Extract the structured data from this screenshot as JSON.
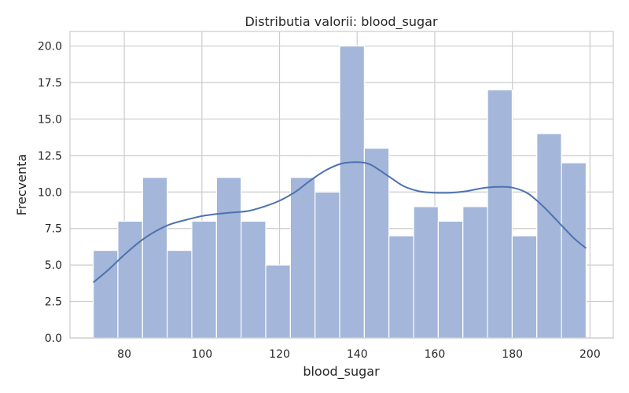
{
  "chart_data": {
    "type": "histogram",
    "title": "Distributia valorii: blood_sugar",
    "xlabel": "blood_sugar",
    "ylabel": "Frecventa",
    "xlim": [
      66,
      206
    ],
    "ylim": [
      0,
      21
    ],
    "xticks": [
      80,
      100,
      120,
      140,
      160,
      180,
      200
    ],
    "yticks": [
      0,
      2.5,
      5,
      7.5,
      10,
      12.5,
      15,
      17.5,
      20
    ],
    "ytick_labels": [
      "0.0",
      "2.5",
      "5.0",
      "7.5",
      "10.0",
      "12.5",
      "15.0",
      "17.5",
      "20.0"
    ],
    "grid": true,
    "bar_color": "#a4b6d9",
    "line_color": "#4c72b0",
    "bins": [
      {
        "x0": 72.0,
        "x1": 78.35,
        "count": 6
      },
      {
        "x0": 78.35,
        "x1": 84.7,
        "count": 8
      },
      {
        "x0": 84.7,
        "x1": 91.05,
        "count": 11
      },
      {
        "x0": 91.05,
        "x1": 97.4,
        "count": 6
      },
      {
        "x0": 97.4,
        "x1": 103.75,
        "count": 8
      },
      {
        "x0": 103.75,
        "x1": 110.1,
        "count": 11
      },
      {
        "x0": 110.1,
        "x1": 116.45,
        "count": 8
      },
      {
        "x0": 116.45,
        "x1": 122.8,
        "count": 5
      },
      {
        "x0": 122.8,
        "x1": 129.15,
        "count": 11
      },
      {
        "x0": 129.15,
        "x1": 135.5,
        "count": 10
      },
      {
        "x0": 135.5,
        "x1": 141.85,
        "count": 20
      },
      {
        "x0": 141.85,
        "x1": 148.2,
        "count": 13
      },
      {
        "x0": 148.2,
        "x1": 154.55,
        "count": 7
      },
      {
        "x0": 154.55,
        "x1": 160.9,
        "count": 9
      },
      {
        "x0": 160.9,
        "x1": 167.25,
        "count": 8
      },
      {
        "x0": 167.25,
        "x1": 173.6,
        "count": 9
      },
      {
        "x0": 173.6,
        "x1": 179.95,
        "count": 17
      },
      {
        "x0": 179.95,
        "x1": 186.3,
        "count": 7
      },
      {
        "x0": 186.3,
        "x1": 192.65,
        "count": 14
      },
      {
        "x0": 192.65,
        "x1": 199.0,
        "count": 12
      }
    ],
    "kde": {
      "x": [
        72,
        76,
        80,
        84,
        88,
        92,
        96,
        100,
        104,
        108,
        112,
        116,
        120,
        124,
        128,
        132,
        136,
        140,
        142,
        144,
        148,
        152,
        156,
        160,
        164,
        168,
        172,
        176,
        180,
        184,
        188,
        192,
        196,
        199
      ],
      "y": [
        3.8,
        4.7,
        5.7,
        6.6,
        7.3,
        7.8,
        8.1,
        8.35,
        8.5,
        8.6,
        8.7,
        9.0,
        9.4,
        10.0,
        10.8,
        11.5,
        11.95,
        12.05,
        12.0,
        11.8,
        11.1,
        10.4,
        10.05,
        9.95,
        9.95,
        10.05,
        10.25,
        10.35,
        10.3,
        9.9,
        9.0,
        7.9,
        6.8,
        6.15
      ]
    }
  }
}
